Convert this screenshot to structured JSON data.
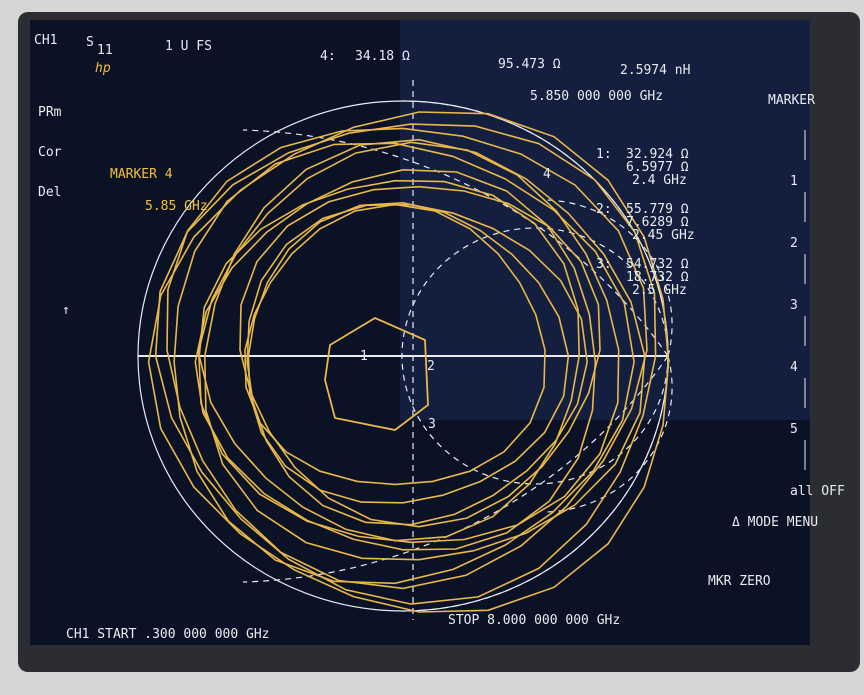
{
  "status": {
    "channel": "CH1",
    "parameter": "S",
    "parameter_sub": "11",
    "format": "1 U FS",
    "brand": "hp",
    "readout_marker": "4:",
    "readout_resistance": "34.18 Ω",
    "readout_reactance": "95.473 Ω",
    "readout_inductance": "2.5974 nH",
    "readout_frequency": "5.850 000 000 GHz"
  },
  "left_annotations": [
    "PRm",
    "Cor",
    "Del",
    "↑"
  ],
  "active_marker": {
    "label": "MARKER 4",
    "frequency": "5.85 GHz"
  },
  "marker_list": [
    {
      "index": "1:",
      "resistance": "32.924 Ω",
      "reactance": "6.5977 Ω",
      "frequency": "2.4 GHz"
    },
    {
      "index": "2:",
      "resistance": "55.779 Ω",
      "reactance": "7.6289 Ω",
      "frequency": "2.45 GHz"
    },
    {
      "index": "3:",
      "resistance": "54.732 Ω",
      "reactance": "18.732 Ω",
      "frequency": "2.5 GHz"
    }
  ],
  "chart_markers": [
    "1",
    "2",
    "3",
    "4"
  ],
  "softkeys": {
    "title": "MARKER",
    "keys": [
      "1",
      "2",
      "3",
      "4",
      "5",
      "all OFF"
    ],
    "mode_menu": "Δ MODE MENU",
    "mkr_zero": "MKR ZERO"
  },
  "footer": {
    "start": "CH1 START .300 000 000 GHz",
    "stop": "STOP 8.000 000 000 GHz"
  }
}
